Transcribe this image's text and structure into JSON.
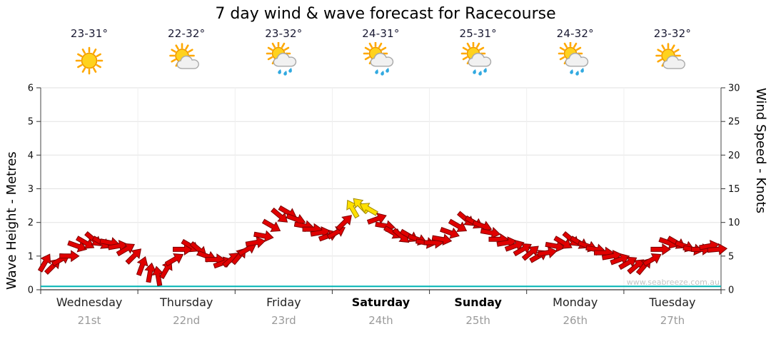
{
  "title": "7 day wind & wave forecast for Racecourse",
  "watermark": "www.seabreeze.com.au",
  "days": [
    {
      "name": "Wednesday",
      "date": "21st",
      "temp": "23-31°",
      "icon": "sunny",
      "bold": false
    },
    {
      "name": "Thursday",
      "date": "22nd",
      "temp": "22-32°",
      "icon": "partly-cloudy",
      "bold": false
    },
    {
      "name": "Friday",
      "date": "23rd",
      "temp": "23-32°",
      "icon": "showers",
      "bold": false
    },
    {
      "name": "Saturday",
      "date": "24th",
      "temp": "24-31°",
      "icon": "showers",
      "bold": true
    },
    {
      "name": "Sunday",
      "date": "25th",
      "temp": "25-31°",
      "icon": "showers",
      "bold": true
    },
    {
      "name": "Monday",
      "date": "26th",
      "temp": "24-32°",
      "icon": "showers",
      "bold": false
    },
    {
      "name": "Tuesday",
      "date": "27th",
      "temp": "23-32°",
      "icon": "partly-cloudy",
      "bold": false
    }
  ],
  "axes": {
    "left_label": "Wave Height - Metres",
    "right_label": "Wind Speed - Knots",
    "left_ticks": [
      0,
      1,
      2,
      3,
      4,
      5,
      6
    ],
    "right_ticks": [
      0,
      5,
      10,
      15,
      20,
      25,
      30
    ]
  },
  "chart_data": {
    "type": "line",
    "title": "7 day wind & wave forecast for Racecourse",
    "categories": [
      "Wednesday 21st",
      "Thursday 22nd",
      "Friday 23rd",
      "Saturday 24th",
      "Sunday 25th",
      "Monday 26th",
      "Tuesday 27th"
    ],
    "points_per_day": 12,
    "ylim_left_metres": [
      0,
      6
    ],
    "ylim_right_knots": [
      0,
      30
    ],
    "legend": "none",
    "grid": "light horizontal gridlines, dark left/right/bottom axes",
    "series": [
      {
        "name": "Wind Speed",
        "unit": "knots",
        "style": "direction-arrows",
        "color": "#e00000",
        "strong_color": "#ffe000",
        "strong_threshold_knots": 11.75,
        "values": [
          4,
          3.5,
          4.5,
          5,
          6.5,
          7,
          7.5,
          7,
          7,
          6.5,
          6,
          5,
          3.5,
          2.5,
          2,
          3,
          4.5,
          6,
          6.5,
          6,
          5,
          4.5,
          4,
          4.5,
          5,
          6,
          7,
          8,
          9.5,
          11,
          11.5,
          10.5,
          9.5,
          9,
          8.5,
          8,
          8.5,
          10,
          12,
          12.5,
          12,
          10.5,
          9.5,
          8.5,
          8,
          8,
          7.5,
          7,
          7,
          7.5,
          8.5,
          9.5,
          10.5,
          10,
          9.5,
          8.5,
          7.5,
          7,
          6.5,
          6,
          5.5,
          5,
          5.5,
          6.5,
          7,
          7.5,
          7,
          6.5,
          6,
          5.5,
          5,
          4.5,
          4,
          3.5,
          3.5,
          4.5,
          6,
          7,
          7,
          6.5,
          6,
          6,
          6.5,
          6
        ],
        "directions_deg": [
          30,
          45,
          60,
          90,
          110,
          120,
          130,
          120,
          100,
          80,
          60,
          45,
          20,
          10,
          350,
          30,
          60,
          90,
          120,
          130,
          110,
          90,
          70,
          50,
          40,
          60,
          80,
          100,
          120,
          130,
          120,
          110,
          100,
          90,
          80,
          70,
          60,
          45,
          330,
          315,
          300,
          70,
          100,
          120,
          130,
          120,
          110,
          100,
          90,
          100,
          110,
          120,
          130,
          120,
          110,
          100,
          90,
          80,
          70,
          60,
          50,
          60,
          80,
          100,
          120,
          130,
          120,
          110,
          100,
          90,
          80,
          70,
          60,
          50,
          40,
          60,
          90,
          110,
          120,
          110,
          100,
          90,
          80,
          85
        ]
      },
      {
        "name": "Wave Height",
        "unit": "metres",
        "style": "line",
        "color": "#00b3b3",
        "values_per_day": [
          0.1,
          0.1,
          0.1,
          0.1,
          0.1,
          0.1,
          0.1
        ]
      }
    ]
  }
}
